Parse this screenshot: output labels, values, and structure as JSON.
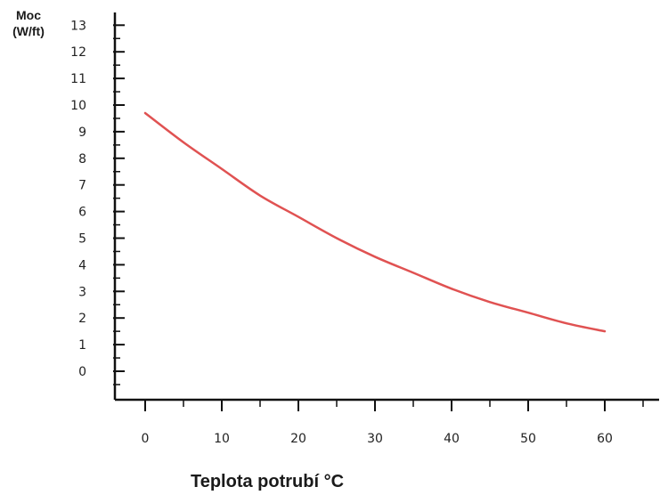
{
  "chart_data": {
    "type": "line",
    "ylabel_line1": "Moc",
    "ylabel_line2": "(W/ft)",
    "xlabel": "Teplota potrubí °C",
    "xlim": [
      -4,
      67
    ],
    "ylim": [
      -1,
      13
    ],
    "x_ticks": [
      0,
      10,
      20,
      30,
      40,
      50,
      60
    ],
    "y_ticks": [
      0,
      1,
      2,
      3,
      4,
      5,
      6,
      7,
      8,
      9,
      10,
      11,
      12,
      13
    ],
    "y_tick_labels": [
      "0",
      "1",
      "2",
      "3",
      "4",
      "5",
      "6",
      "7",
      "8",
      "9",
      "10",
      "11",
      "12",
      "13"
    ],
    "series": [
      {
        "color": "#e05252",
        "x": [
          0,
          5,
          10,
          15,
          20,
          25,
          30,
          35,
          40,
          45,
          50,
          55,
          60
        ],
        "y": [
          9.7,
          8.6,
          7.6,
          6.6,
          5.8,
          5.0,
          4.3,
          3.7,
          3.1,
          2.6,
          2.2,
          1.8,
          1.5
        ]
      }
    ]
  }
}
